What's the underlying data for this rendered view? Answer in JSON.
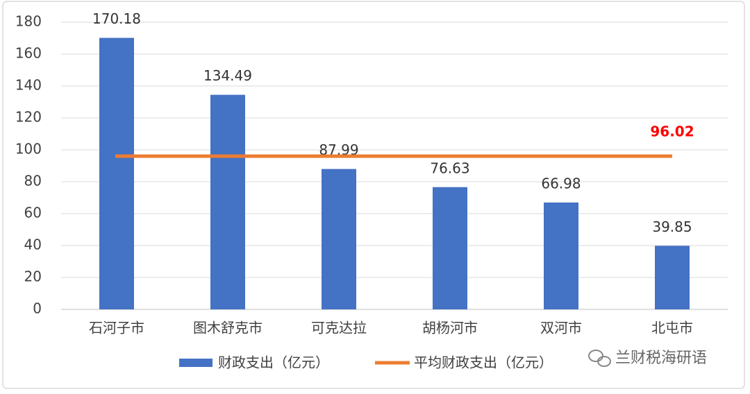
{
  "chart_data": {
    "type": "bar",
    "categories": [
      "石河子市",
      "图木舒克市",
      "可克达拉",
      "胡杨河市",
      "双河市",
      "北屯市"
    ],
    "series": [
      {
        "name": "财政支出（亿元）",
        "type": "bar",
        "color": "#4472c4",
        "values": [
          170.18,
          134.49,
          87.99,
          76.63,
          66.98,
          39.85
        ]
      },
      {
        "name": "平均财政支出（亿元）",
        "type": "line",
        "color": "#ed7d31",
        "label_color": "#ff0000",
        "values": [
          96.02,
          96.02,
          96.02,
          96.02,
          96.02,
          96.02
        ]
      }
    ],
    "ylim": [
      0,
      180
    ],
    "yticks": [
      0,
      20,
      40,
      60,
      80,
      100,
      120,
      140,
      160,
      180
    ],
    "grid": true,
    "legend": "bottom",
    "watermark": "兰财税海研语"
  }
}
